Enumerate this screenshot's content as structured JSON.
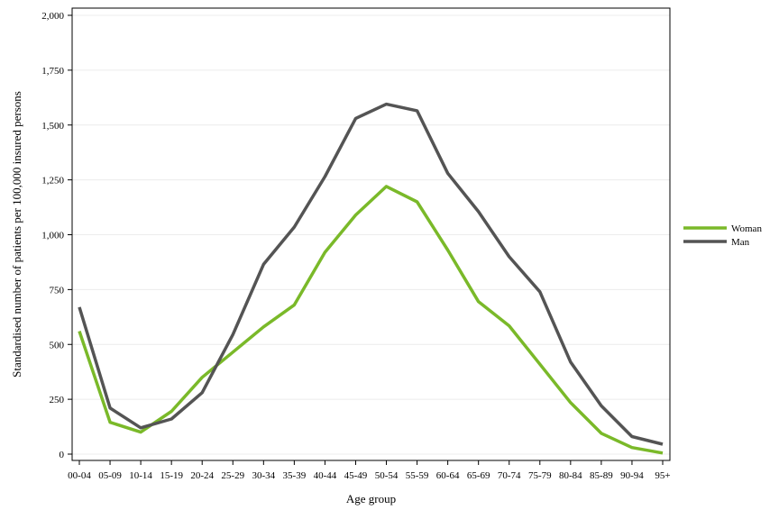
{
  "chart_data": {
    "type": "line",
    "xlabel": "Age group",
    "ylabel": "Standardised number of patients per 100,000 insured persons",
    "ylim": [
      0,
      2000
    ],
    "y_ticks": [
      0,
      250,
      500,
      750,
      1000,
      1250,
      1500,
      1750,
      2000
    ],
    "y_tick_labels": [
      "0",
      "250",
      "500",
      "750",
      "1,000",
      "1,250",
      "1,500",
      "1,750",
      "2,000"
    ],
    "grid": true,
    "legend_position": "right",
    "categories": [
      "00-04",
      "05-09",
      "10-14",
      "15-19",
      "20-24",
      "25-29",
      "30-34",
      "35-39",
      "40-44",
      "45-49",
      "50-54",
      "55-59",
      "60-64",
      "65-69",
      "70-74",
      "75-79",
      "80-84",
      "85-89",
      "90-94",
      "95+"
    ],
    "series": [
      {
        "name": "Woman",
        "color": "#7ab929",
        "values": [
          560,
          145,
          100,
          195,
          350,
          465,
          580,
          680,
          920,
          1090,
          1220,
          1150,
          930,
          695,
          585,
          410,
          235,
          95,
          30,
          5
        ]
      },
      {
        "name": "Man",
        "color": "#545454",
        "values": [
          670,
          210,
          120,
          160,
          280,
          545,
          865,
          1035,
          1265,
          1530,
          1595,
          1565,
          1280,
          1105,
          900,
          740,
          420,
          220,
          80,
          45
        ]
      }
    ]
  }
}
